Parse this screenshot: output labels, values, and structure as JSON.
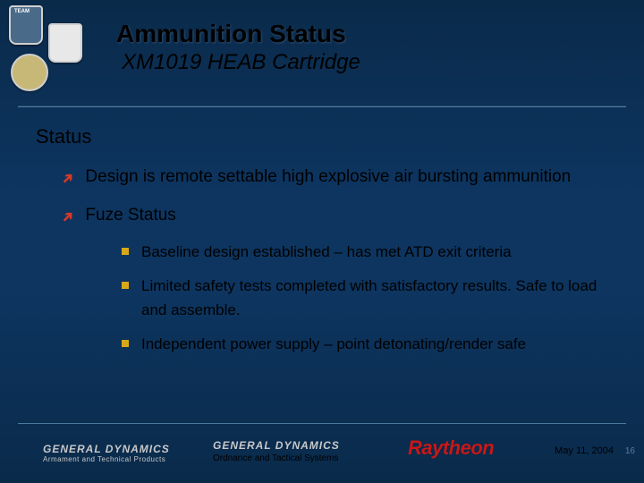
{
  "colors": {
    "bg_top": "#0a2a4a",
    "bg_mid": "#0d3560",
    "rule": "#4a7aa0",
    "arrow": "#d43a2a",
    "square": "#d8a818",
    "raytheon": "#c81818",
    "footer_text": "#c8c8c8"
  },
  "title": "Ammunition Status",
  "subtitle": "XM1019 HEAB Cartridge",
  "section_heading": "Status",
  "bullets": [
    {
      "text": "Design is remote settable high explosive air bursting ammunition",
      "children": []
    },
    {
      "text": "Fuze Status",
      "children": [
        {
          "text": "Baseline design established – has met ATD exit criteria"
        },
        {
          "text": "Limited safety tests completed with satisfactory results.  Safe to load and assemble."
        },
        {
          "text": "Independent power supply – point detonating/render safe"
        }
      ]
    }
  ],
  "footer": {
    "gd_name": "GENERAL DYNAMICS",
    "gd_sub1": "Armament and Technical Products",
    "gd_sub2": "Ordnance and Tactical Systems",
    "raytheon": "Raytheon",
    "date": "May 11, 2004",
    "page": "16"
  },
  "logos": {
    "team_label": "TEAM"
  }
}
